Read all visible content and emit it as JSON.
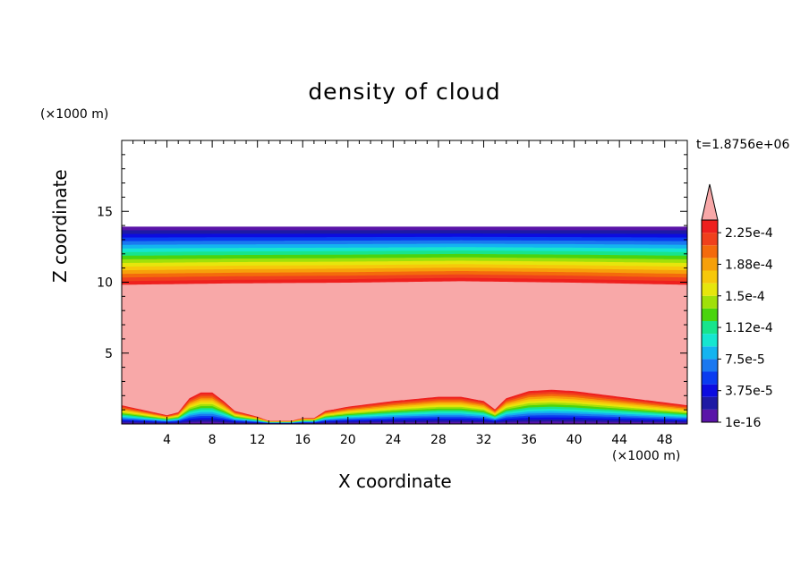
{
  "chart_data": {
    "type": "heatmap",
    "title": "density of cloud",
    "xlabel": "X coordinate",
    "ylabel": "Z coordinate",
    "x_unit": "(×1000 m)",
    "y_unit": "(×1000 m)",
    "time_label": "t=1.8756e+06",
    "xlim": [
      0,
      50
    ],
    "ylim": [
      0,
      20
    ],
    "x_ticks": [
      4,
      8,
      12,
      16,
      20,
      24,
      28,
      32,
      36,
      40,
      44,
      48
    ],
    "y_ticks": [
      5,
      10,
      15
    ],
    "colorbar": {
      "labels": [
        "1e-16",
        "3.75e-5",
        "7.5e-5",
        "1.12e-4",
        "1.5e-4",
        "1.88e-4",
        "2.25e-4"
      ],
      "colors": [
        "#5a14a8",
        "#1e1aa4",
        "#0c0ce0",
        "#0a3cf0",
        "#1a78f0",
        "#14b4f0",
        "#16e6d0",
        "#18e48c",
        "#4ad40e",
        "#a0e00a",
        "#e6e60c",
        "#f6c80a",
        "#f6a00a",
        "#f46a0c",
        "#f0401c",
        "#ee201e",
        "#f8a8a8"
      ]
    },
    "field": {
      "cloud_top_z": 13.9,
      "saturation_top_z": [
        [
          0,
          9.8
        ],
        [
          10,
          9.9
        ],
        [
          20,
          9.95
        ],
        [
          30,
          10.05
        ],
        [
          40,
          9.95
        ],
        [
          50,
          9.8
        ]
      ],
      "ground_layer_top_z": [
        [
          0,
          1.3
        ],
        [
          4,
          0.6
        ],
        [
          5,
          0.8
        ],
        [
          6,
          1.8
        ],
        [
          7,
          2.2
        ],
        [
          8,
          2.2
        ],
        [
          9,
          1.6
        ],
        [
          10,
          0.9
        ],
        [
          11,
          0.7
        ],
        [
          12,
          0.5
        ],
        [
          13,
          0.2
        ],
        [
          15,
          0.2
        ],
        [
          16,
          0.4
        ],
        [
          17,
          0.4
        ],
        [
          18,
          0.9
        ],
        [
          20,
          1.2
        ],
        [
          24,
          1.6
        ],
        [
          28,
          1.9
        ],
        [
          30,
          1.9
        ],
        [
          32,
          1.6
        ],
        [
          33,
          1.0
        ],
        [
          34,
          1.8
        ],
        [
          36,
          2.3
        ],
        [
          38,
          2.4
        ],
        [
          40,
          2.3
        ],
        [
          44,
          1.9
        ],
        [
          48,
          1.5
        ],
        [
          50,
          1.3
        ]
      ]
    }
  }
}
